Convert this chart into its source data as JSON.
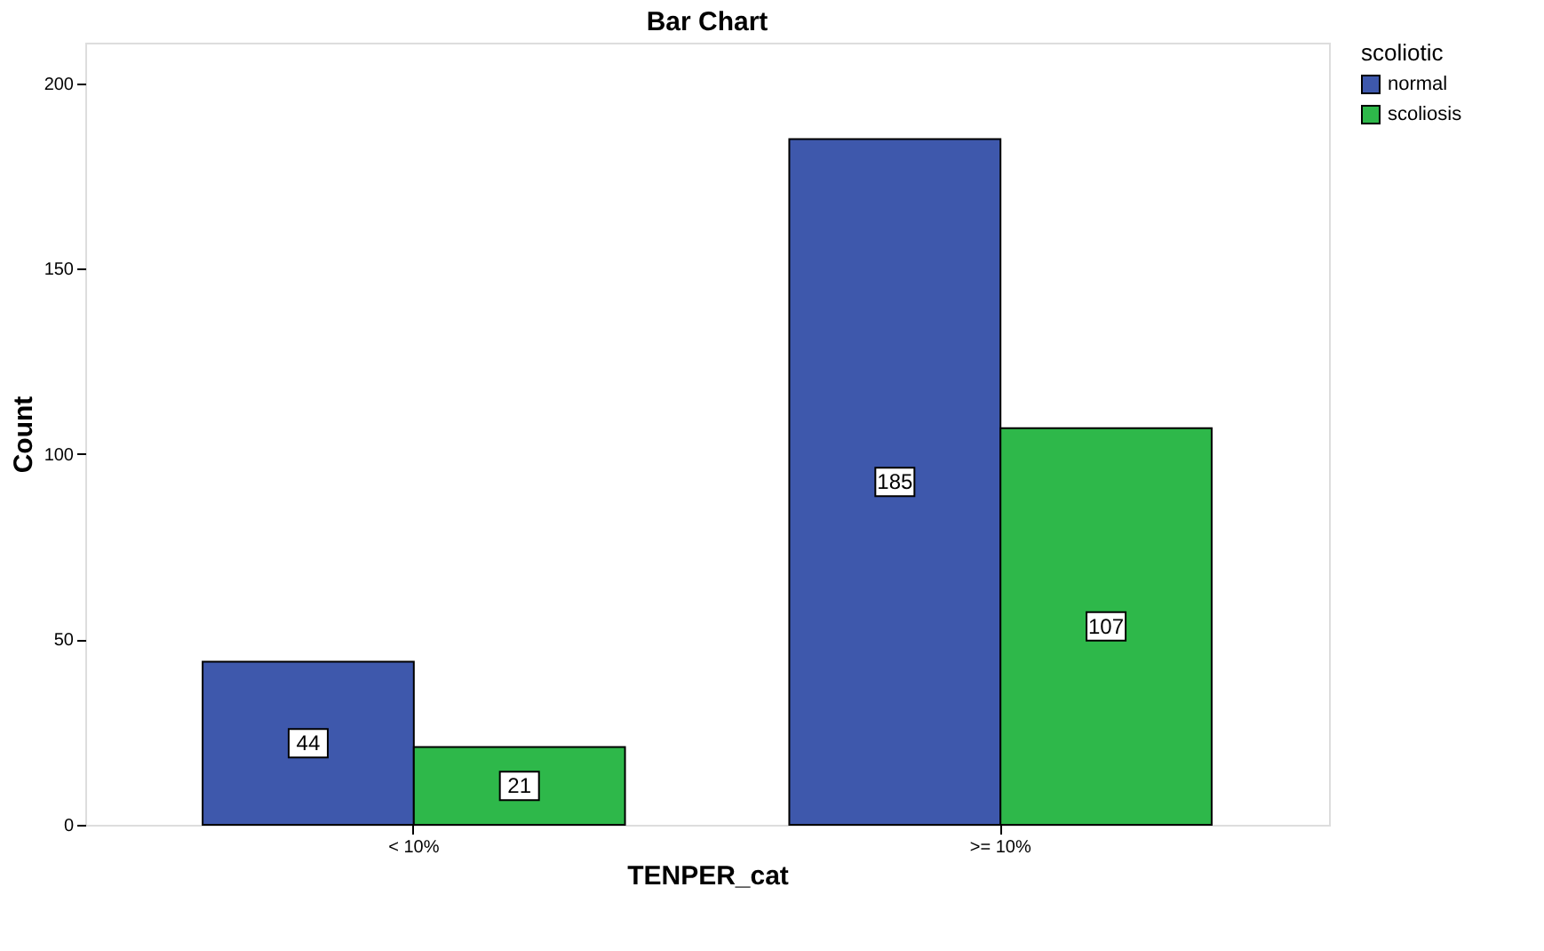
{
  "chart_data": {
    "type": "bar",
    "title": "Bar Chart",
    "xlabel": "TENPER_cat",
    "ylabel": "Count",
    "legend_title": "scoliotic",
    "categories": [
      "< 10%",
      ">= 10%"
    ],
    "series": [
      {
        "name": "normal",
        "color": "#3e58ac",
        "values": [
          44,
          185
        ]
      },
      {
        "name": "scoliosis",
        "color": "#2eb84a",
        "values": [
          21,
          107
        ]
      }
    ],
    "ylim": [
      0,
      211
    ],
    "yticks": [
      0,
      50,
      100,
      150,
      200
    ],
    "grid": false,
    "legend": "top right",
    "data_labels": true
  }
}
